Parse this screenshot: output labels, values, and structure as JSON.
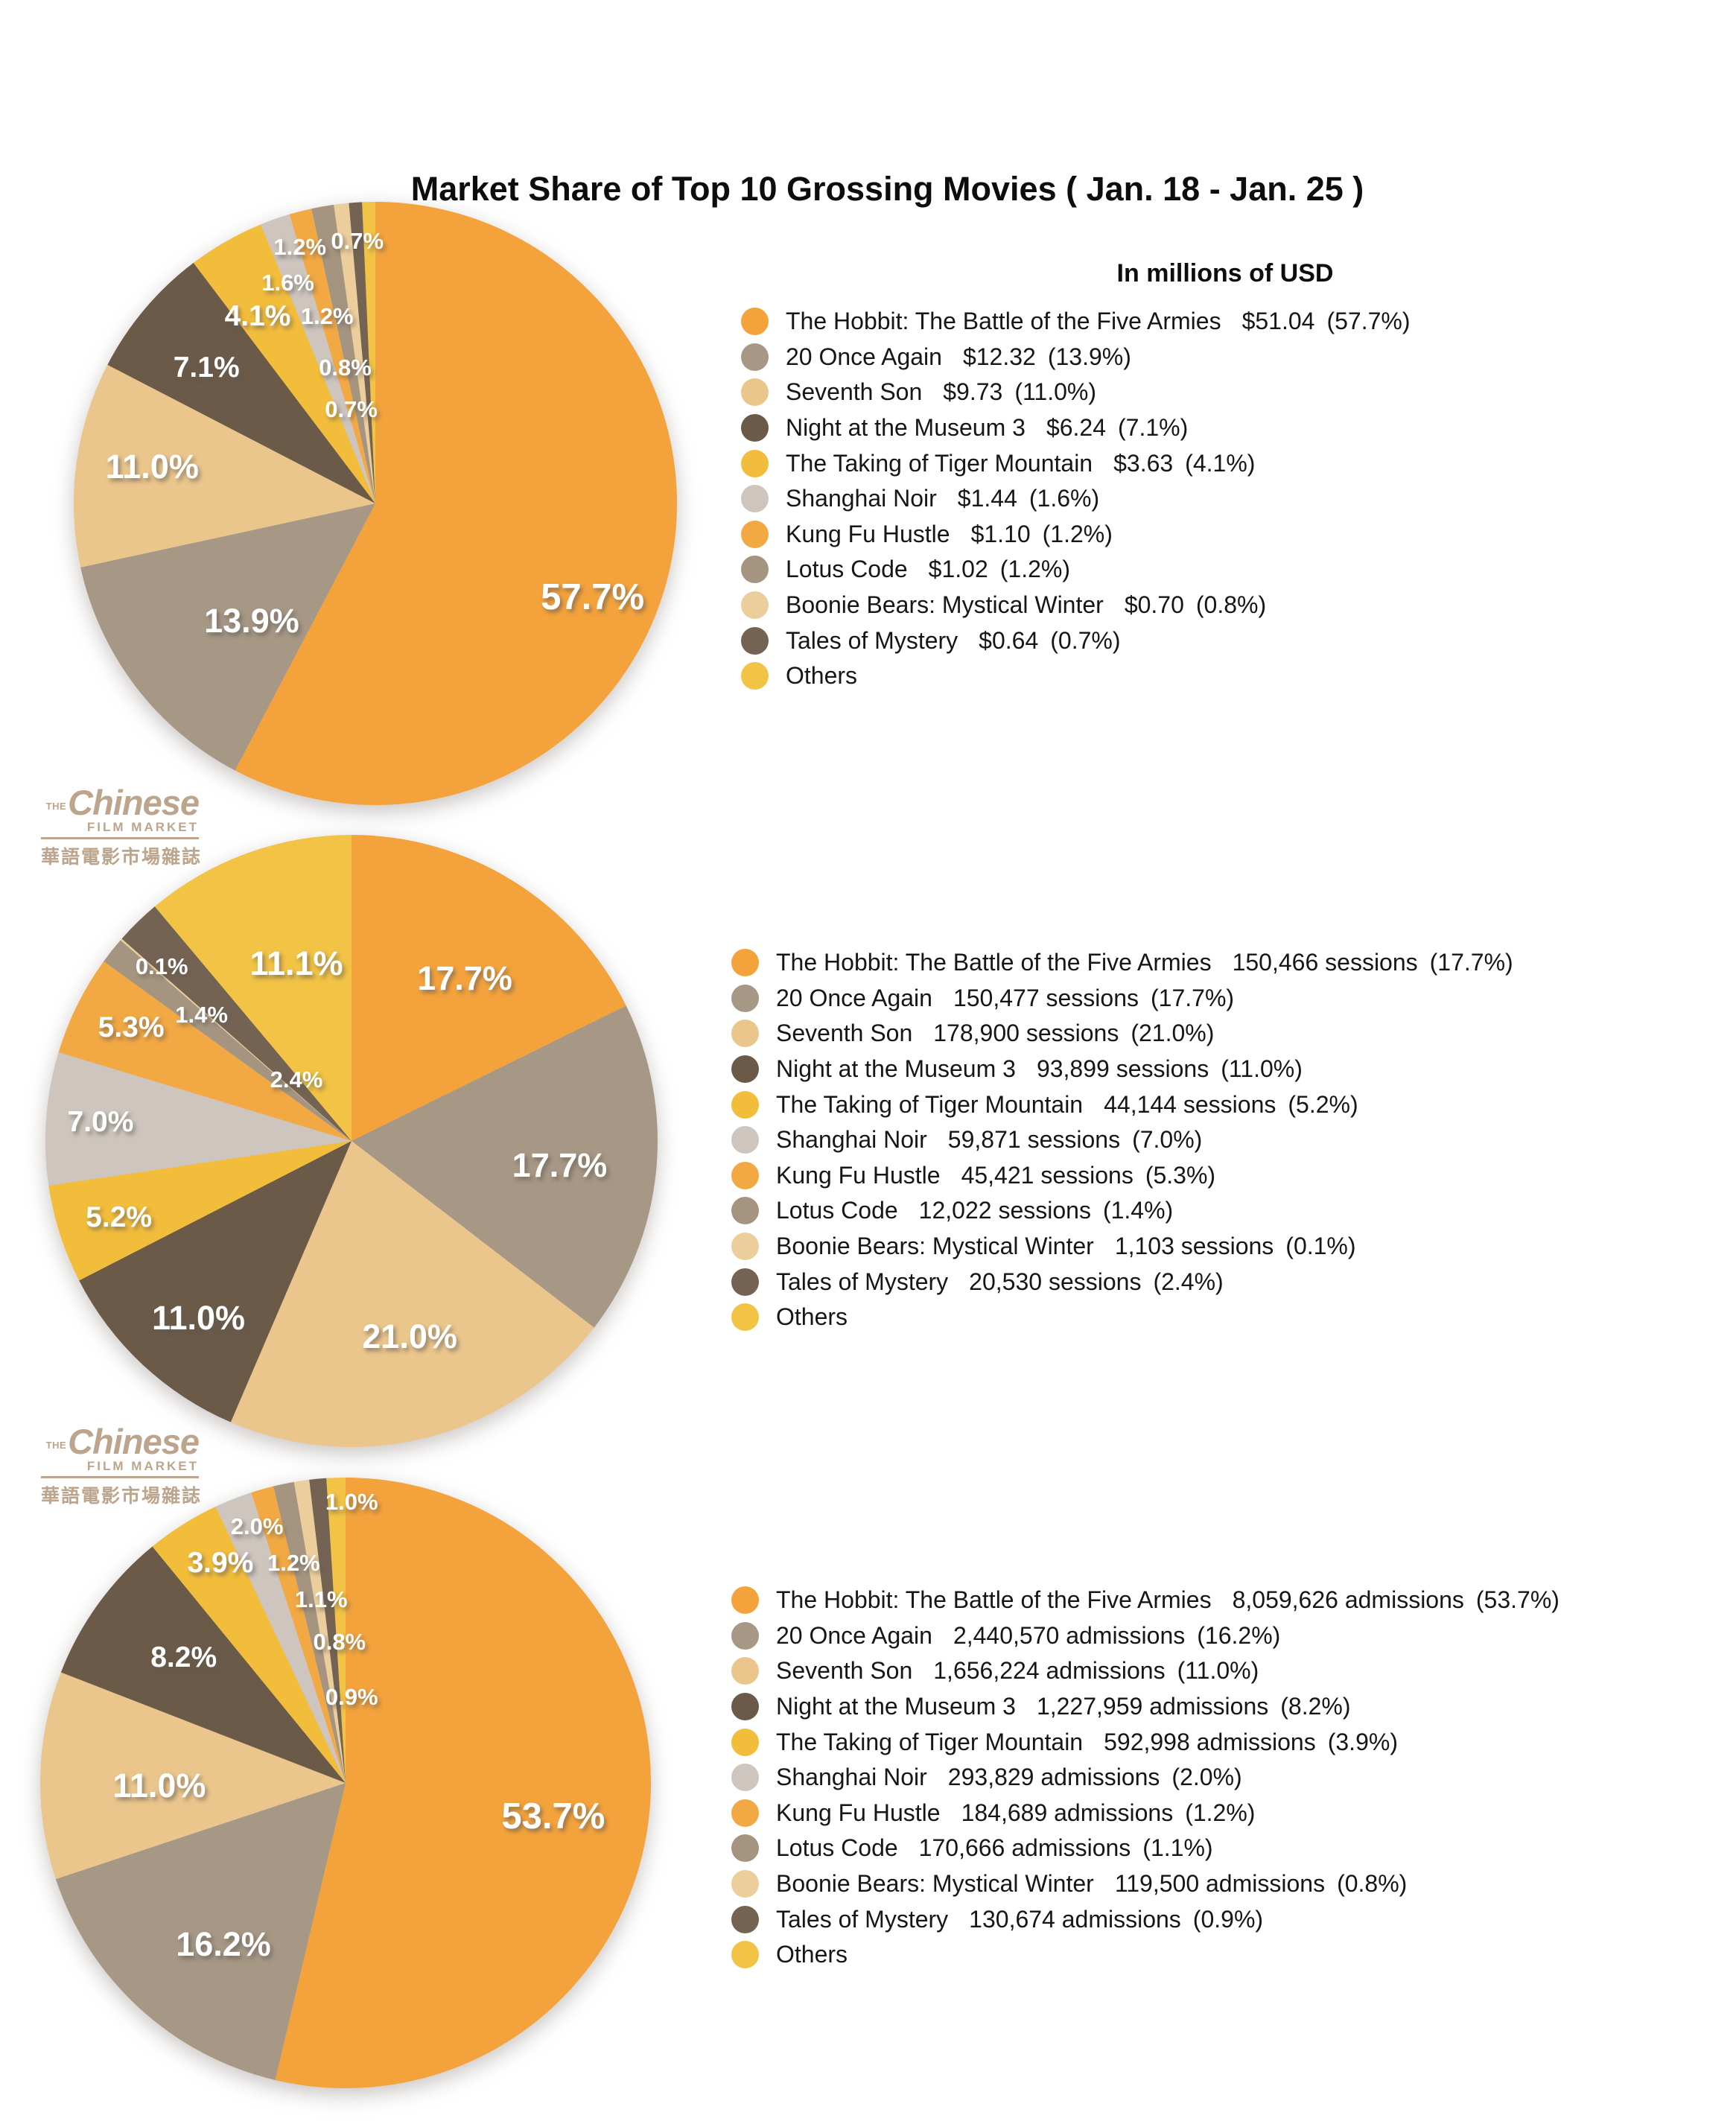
{
  "title": "Market Share of Top 10 Grossing Movies ( Jan. 18 - Jan. 25 )",
  "subtitle": "In millions of USD",
  "brand_logo": {
    "the": "THE",
    "name": "Chinese",
    "tagline": "FILM MARKET",
    "chinese": "華語電影市場雜誌"
  },
  "palette": {
    "hobbit": "#F4A33C",
    "once_again": "#A79785",
    "seventh_son": "#EBC68C",
    "night_museum": "#6B5A48",
    "tiger_mountain": "#F3BD3C",
    "shanghai_noir": "#CDC5BE",
    "kung_fu": "#F2A944",
    "lotus": "#A59580",
    "boonie": "#ECCD9C",
    "tales": "#746353",
    "others": "#F2C344"
  },
  "chart_data": [
    {
      "type": "pie",
      "value_unit": "millions of USD",
      "legend_position": "right",
      "labels_on_slices": true,
      "slices": [
        {
          "name": "The Hobbit: The Battle of the Five Armies",
          "value": 51.04,
          "display": "$51.04",
          "pct": 57.7,
          "color": "hobbit"
        },
        {
          "name": "20 Once Again",
          "value": 12.32,
          "display": "$12.32",
          "pct": 13.9,
          "color": "once_again"
        },
        {
          "name": "Seventh Son",
          "value": 9.73,
          "display": "$9.73",
          "pct": 11.0,
          "color": "seventh_son"
        },
        {
          "name": "Night at the Museum 3",
          "value": 6.24,
          "display": "$6.24",
          "pct": 7.1,
          "color": "night_museum"
        },
        {
          "name": "The Taking of Tiger Mountain",
          "value": 3.63,
          "display": "$3.63",
          "pct": 4.1,
          "color": "tiger_mountain"
        },
        {
          "name": "Shanghai Noir",
          "value": 1.44,
          "display": "$1.44",
          "pct": 1.6,
          "color": "shanghai_noir"
        },
        {
          "name": "Kung Fu Hustle",
          "value": 1.1,
          "display": "$1.10",
          "pct": 1.2,
          "color": "kung_fu"
        },
        {
          "name": "Lotus Code",
          "value": 1.02,
          "display": "$1.02",
          "pct": 1.2,
          "color": "lotus"
        },
        {
          "name": "Boonie Bears: Mystical Winter",
          "value": 0.7,
          "display": "$0.70",
          "pct": 0.8,
          "color": "boonie"
        },
        {
          "name": "Tales of Mystery",
          "value": 0.64,
          "display": "$0.64",
          "pct": 0.7,
          "color": "tales"
        },
        {
          "name": "Others",
          "value": null,
          "display": "",
          "pct": 0.7,
          "color": "others"
        }
      ]
    },
    {
      "type": "pie",
      "value_unit": "sessions",
      "legend_position": "right",
      "labels_on_slices": true,
      "slices": [
        {
          "name": "The Hobbit: The Battle of the Five Armies",
          "value": 150466,
          "display": "150,466 sessions",
          "pct": 17.7,
          "color": "hobbit"
        },
        {
          "name": "20 Once Again",
          "value": 150477,
          "display": "150,477 sessions",
          "pct": 17.7,
          "color": "once_again"
        },
        {
          "name": "Seventh Son",
          "value": 178900,
          "display": "178,900 sessions",
          "pct": 21.0,
          "color": "seventh_son"
        },
        {
          "name": "Night at the Museum 3",
          "value": 93899,
          "display": "93,899 sessions",
          "pct": 11.0,
          "color": "night_museum"
        },
        {
          "name": "The Taking of Tiger Mountain",
          "value": 44144,
          "display": "44,144 sessions",
          "pct": 5.2,
          "color": "tiger_mountain"
        },
        {
          "name": "Shanghai Noir",
          "value": 59871,
          "display": "59,871 sessions",
          "pct": 7.0,
          "color": "shanghai_noir"
        },
        {
          "name": "Kung Fu Hustle",
          "value": 45421,
          "display": "45,421 sessions",
          "pct": 5.3,
          "color": "kung_fu"
        },
        {
          "name": "Lotus Code",
          "value": 12022,
          "display": "12,022 sessions",
          "pct": 1.4,
          "color": "lotus"
        },
        {
          "name": "Boonie Bears: Mystical Winter",
          "value": 1103,
          "display": "1,103 sessions",
          "pct": 0.1,
          "color": "boonie"
        },
        {
          "name": "Tales of Mystery",
          "value": 20530,
          "display": "20,530 sessions",
          "pct": 2.4,
          "color": "tales"
        },
        {
          "name": "Others",
          "value": null,
          "display": "",
          "pct": 11.1,
          "color": "others"
        }
      ]
    },
    {
      "type": "pie",
      "value_unit": "admissions",
      "legend_position": "right",
      "labels_on_slices": true,
      "slices": [
        {
          "name": "The Hobbit: The Battle of the Five Armies",
          "value": 8059626,
          "display": "8,059,626 admissions",
          "pct": 53.7,
          "color": "hobbit"
        },
        {
          "name": "20 Once Again",
          "value": 2440570,
          "display": "2,440,570 admissions",
          "pct": 16.2,
          "color": "once_again"
        },
        {
          "name": "Seventh Son",
          "value": 1656224,
          "display": "1,656,224 admissions",
          "pct": 11.0,
          "color": "seventh_son"
        },
        {
          "name": "Night at the Museum 3",
          "value": 1227959,
          "display": "1,227,959 admissions",
          "pct": 8.2,
          "color": "night_museum"
        },
        {
          "name": "The Taking of Tiger Mountain",
          "value": 592998,
          "display": "592,998 admissions",
          "pct": 3.9,
          "color": "tiger_mountain"
        },
        {
          "name": "Shanghai Noir",
          "value": 293829,
          "display": "293,829 admissions",
          "pct": 2.0,
          "color": "shanghai_noir"
        },
        {
          "name": "Kung Fu Hustle",
          "value": 184689,
          "display": "184,689 admissions",
          "pct": 1.2,
          "color": "kung_fu"
        },
        {
          "name": "Lotus Code",
          "value": 170666,
          "display": "170,666 admissions",
          "pct": 1.1,
          "color": "lotus"
        },
        {
          "name": "Boonie Bears: Mystical Winter",
          "value": 119500,
          "display": "119,500 admissions",
          "pct": 0.8,
          "color": "boonie"
        },
        {
          "name": "Tales of Mystery",
          "value": 130674,
          "display": "130,674 admissions",
          "pct": 0.9,
          "color": "tales"
        },
        {
          "name": "Others",
          "value": null,
          "display": "",
          "pct": 1.0,
          "color": "others"
        }
      ]
    }
  ]
}
